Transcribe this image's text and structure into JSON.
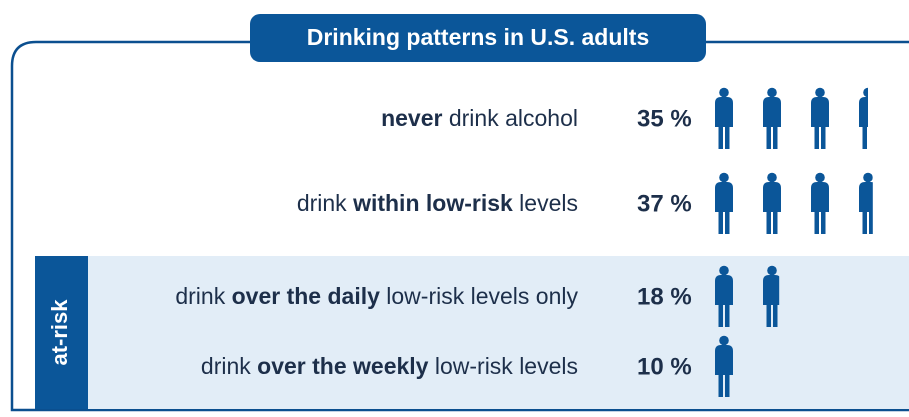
{
  "chart_data": {
    "type": "pictogram",
    "title": "Drinking patterns in U.S. adults",
    "categories": [
      {
        "bold": "never",
        "after": " drink alcohol"
      },
      {
        "before": "drink ",
        "bold": "within low-risk",
        "after": " levels"
      },
      {
        "before": "drink ",
        "bold": "over the daily",
        "after": " low-risk levels only"
      },
      {
        "before": "drink ",
        "bold": "over the weekly",
        "after": " low-risk levels"
      }
    ],
    "values": [
      35,
      37,
      18,
      10
    ],
    "value_labels": [
      "35 %",
      "37 %",
      "18 %",
      "10 %"
    ],
    "icon_value": 10,
    "color": "#0b5699",
    "group": {
      "label": "at-risk",
      "rows": [
        2,
        3
      ],
      "color": "#e2edf7"
    }
  }
}
